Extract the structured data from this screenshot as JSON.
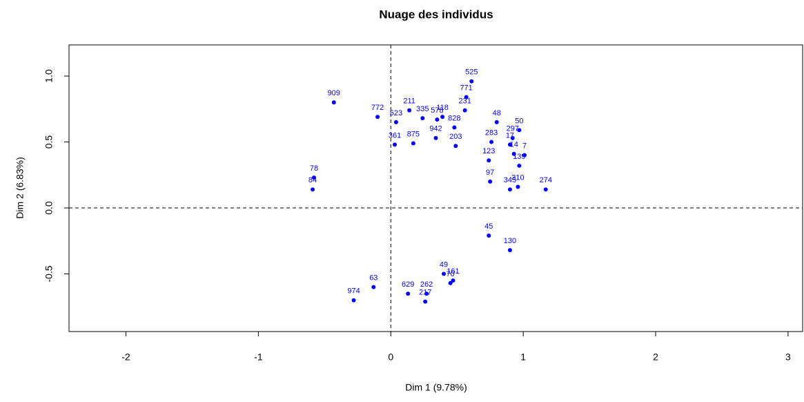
{
  "chart_data": {
    "type": "scatter",
    "title": "Nuage des individus",
    "x_label": "Dim 1 (9.78%)",
    "y_label": "Dim 2 (6.83%)",
    "color": "#0000ff",
    "labels": [
      "525",
      "771",
      "231",
      "48",
      "50",
      "297",
      "17",
      "7",
      "14",
      "139",
      "283",
      "123",
      "97",
      "310",
      "274",
      "345",
      "130",
      "45",
      "161",
      "49",
      "70",
      "262",
      "217",
      "629",
      "974",
      "909",
      "211",
      "335",
      "578",
      "118",
      "828",
      "942",
      "875",
      "361",
      "203",
      "772",
      "523",
      "78",
      "84",
      "63"
    ],
    "x": [
      0.61,
      0.57,
      0.56,
      0.8,
      0.97,
      0.92,
      0.9,
      1.01,
      0.93,
      0.97,
      0.76,
      0.74,
      0.75,
      0.96,
      1.17,
      0.9,
      0.9,
      0.74,
      0.47,
      0.4,
      0.45,
      0.27,
      0.26,
      0.13,
      -0.28,
      -0.43,
      0.14,
      0.24,
      0.35,
      0.39,
      0.48,
      0.34,
      0.17,
      0.03,
      0.49,
      -0.1,
      0.04,
      -0.58,
      -0.59,
      -0.13
    ],
    "y": [
      0.96,
      0.84,
      0.74,
      0.65,
      0.59,
      0.53,
      0.48,
      0.4,
      0.41,
      0.32,
      0.5,
      0.36,
      0.2,
      0.16,
      0.14,
      0.14,
      -0.32,
      -0.21,
      -0.55,
      -0.5,
      -0.57,
      -0.65,
      -0.71,
      -0.65,
      -0.7,
      0.8,
      0.74,
      0.68,
      0.67,
      0.69,
      0.61,
      0.53,
      0.49,
      0.48,
      0.47,
      0.69,
      0.65,
      0.23,
      0.14,
      -0.6
    ],
    "xlim": [
      -2.43,
      3.11
    ],
    "ylim": [
      -0.937,
      1.236
    ],
    "xticks": [
      -2,
      -1,
      0,
      1,
      2,
      3
    ],
    "yticks": [
      -0.5,
      {
        "value": 0,
        "label": "0.0"
      },
      0.5,
      {
        "value": 1,
        "label": "1.0"
      }
    ],
    "reference_lines": true
  }
}
